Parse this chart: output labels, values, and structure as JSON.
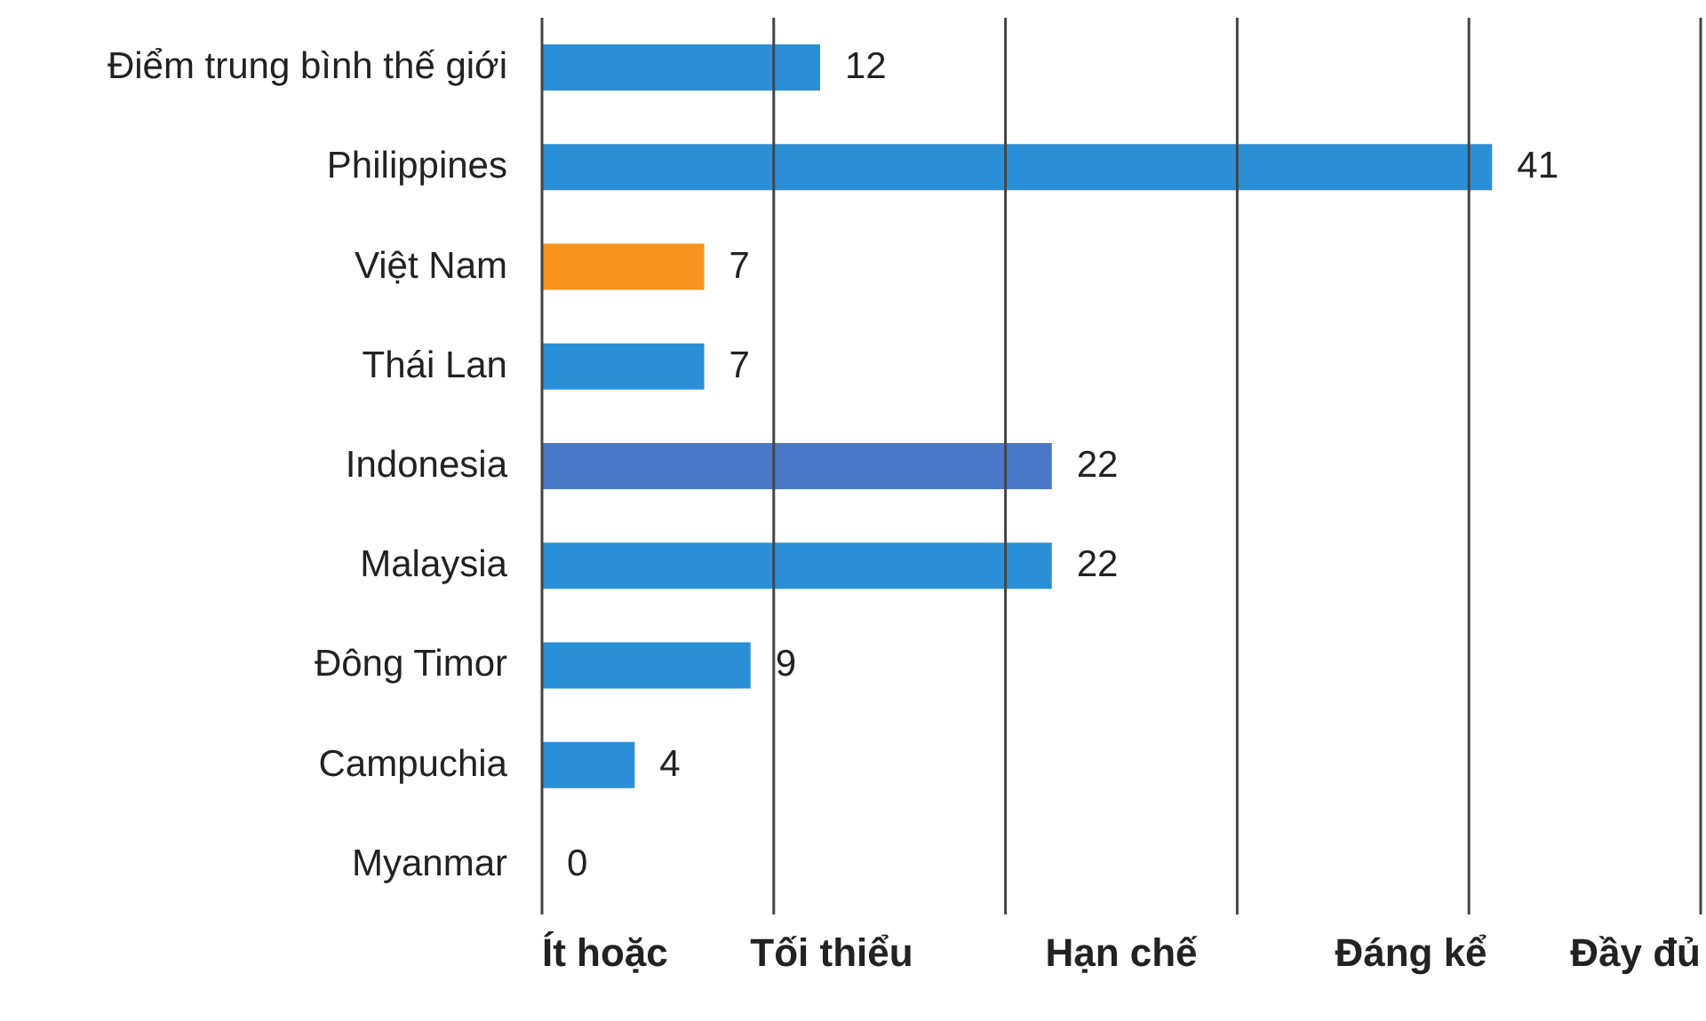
{
  "chart_data": {
    "type": "bar",
    "orientation": "horizontal",
    "categories": [
      "Điểm trung bình thế giới",
      "Philippines",
      "Việt Nam",
      "Thái Lan",
      "Indonesia",
      "Malaysia",
      "Đông Timor",
      "Campuchia",
      "Myanmar"
    ],
    "values": [
      12,
      41,
      7,
      7,
      22,
      22,
      9,
      4,
      0
    ],
    "colors": [
      "#2b8fd8",
      "#2b8fd8",
      "#f7941d",
      "#2b8fd8",
      "#4a78c6",
      "#2b8fd8",
      "#2b8fd8",
      "#2b8fd8",
      "#2b8fd8"
    ],
    "xlim": [
      0,
      50
    ],
    "xticks": [
      {
        "value": 0,
        "label": null
      },
      {
        "value": 10,
        "label": null
      },
      {
        "value": 20,
        "label": null
      },
      {
        "value": 30,
        "label": null
      },
      {
        "value": 40,
        "label": null
      },
      {
        "value": 50,
        "label": null
      }
    ],
    "tick_labels": "y",
    "annotations": [
      "Ít hoặc",
      "Tối thiểu",
      "Hạn chế",
      "Đáng kể",
      "Đầy đủ"
    ],
    "grid": "x",
    "data_labels": true
  }
}
